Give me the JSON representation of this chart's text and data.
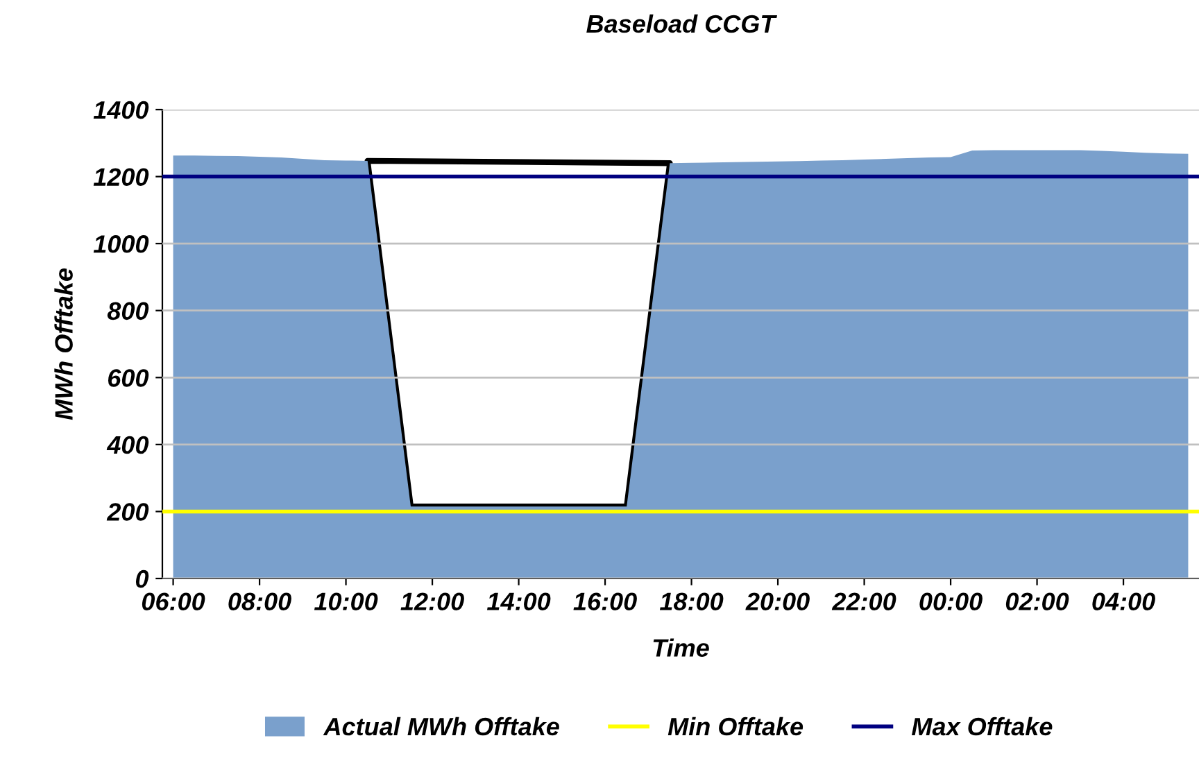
{
  "chart_data": {
    "type": "area",
    "title": "Baseload CCGT",
    "xlabel": "Time",
    "ylabel": "MWh Offtake",
    "categories": [
      "06:00",
      null,
      null,
      null,
      "08:00",
      null,
      null,
      null,
      "10:00",
      null,
      null,
      null,
      "12:00",
      null,
      null,
      null,
      "14:00",
      null,
      null,
      null,
      "16:00",
      null,
      null,
      null,
      "18:00",
      null,
      null,
      null,
      "20:00",
      null,
      null,
      null,
      "22:00",
      null,
      null,
      null,
      "00:00",
      null,
      null,
      null,
      "02:00",
      null,
      null,
      null,
      "04:00",
      null,
      null,
      null
    ],
    "series": [
      {
        "name": "Actual MWh Offtake",
        "color": "#7aa0cc",
        "values": [
          1263,
          1263,
          1262,
          1261,
          1259,
          1257,
          1253,
          1249,
          1248,
          1247,
          732,
          215,
          215,
          215,
          215,
          215,
          215,
          215,
          215,
          215,
          215,
          215,
          728,
          1240,
          1241,
          1242,
          1243,
          1244,
          1245,
          1246,
          1248,
          1249,
          1251,
          1253,
          1255,
          1257,
          1258,
          1278,
          1279,
          1279,
          1279,
          1279,
          1279,
          1277,
          1274,
          1271,
          1269,
          1268
        ]
      }
    ],
    "ref_lines": [
      {
        "axis": "y",
        "value": 200,
        "label": "Min Offtake",
        "color": "#ffff00"
      },
      {
        "axis": "y",
        "value": 1200,
        "label": "Max Offtake",
        "color": "#000080"
      }
    ],
    "ylim": [
      0,
      1400
    ],
    "yticks": [
      0,
      200,
      400,
      600,
      800,
      1000,
      1200,
      1400
    ],
    "grid": "y",
    "legend": "bottom"
  }
}
